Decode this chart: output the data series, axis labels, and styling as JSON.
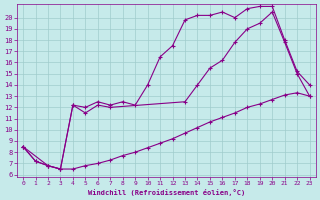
{
  "xlabel": "Windchill (Refroidissement éolien,°C)",
  "bg_color": "#c6eaea",
  "grid_color": "#a0cccc",
  "line_color": "#880088",
  "xlim_min": -0.5,
  "xlim_max": 23.5,
  "ylim_min": 5.8,
  "ylim_max": 21.2,
  "xticks": [
    0,
    1,
    2,
    3,
    4,
    5,
    6,
    7,
    8,
    9,
    10,
    11,
    12,
    13,
    14,
    15,
    16,
    17,
    18,
    19,
    20,
    21,
    22,
    23
  ],
  "yticks": [
    6,
    7,
    8,
    9,
    10,
    11,
    12,
    13,
    14,
    15,
    16,
    17,
    18,
    19,
    20
  ],
  "line1_x": [
    0,
    1,
    2,
    3,
    4,
    5,
    6,
    7,
    8,
    9,
    10,
    11,
    12,
    13,
    14,
    15,
    16,
    17,
    18,
    19,
    20,
    21,
    22,
    23
  ],
  "line1_y": [
    8.5,
    7.2,
    6.8,
    6.5,
    6.5,
    6.8,
    7.0,
    7.3,
    7.7,
    8.0,
    8.4,
    8.8,
    9.2,
    9.7,
    10.2,
    10.7,
    11.1,
    11.5,
    12.0,
    12.3,
    12.7,
    13.1,
    13.3,
    13.0
  ],
  "line2_x": [
    0,
    1,
    2,
    3,
    4,
    5,
    6,
    7,
    8,
    9,
    10,
    11,
    12,
    13,
    14,
    15,
    16,
    17,
    18,
    19,
    20,
    21,
    22,
    23
  ],
  "line2_y": [
    8.5,
    7.2,
    6.8,
    6.5,
    12.2,
    12.0,
    12.5,
    12.2,
    12.5,
    12.2,
    14.0,
    16.5,
    17.5,
    19.8,
    20.2,
    20.2,
    20.5,
    20.0,
    20.8,
    21.0,
    21.0,
    18.0,
    15.2,
    14.0
  ],
  "line3_x": [
    0,
    2,
    3,
    4,
    5,
    6,
    7,
    13,
    14,
    15,
    16,
    17,
    18,
    19,
    20,
    21,
    22,
    23
  ],
  "line3_y": [
    8.5,
    6.8,
    6.5,
    12.2,
    11.5,
    12.2,
    12.0,
    12.5,
    14.0,
    15.5,
    16.2,
    17.8,
    19.0,
    19.5,
    20.5,
    17.8,
    15.0,
    13.0
  ]
}
